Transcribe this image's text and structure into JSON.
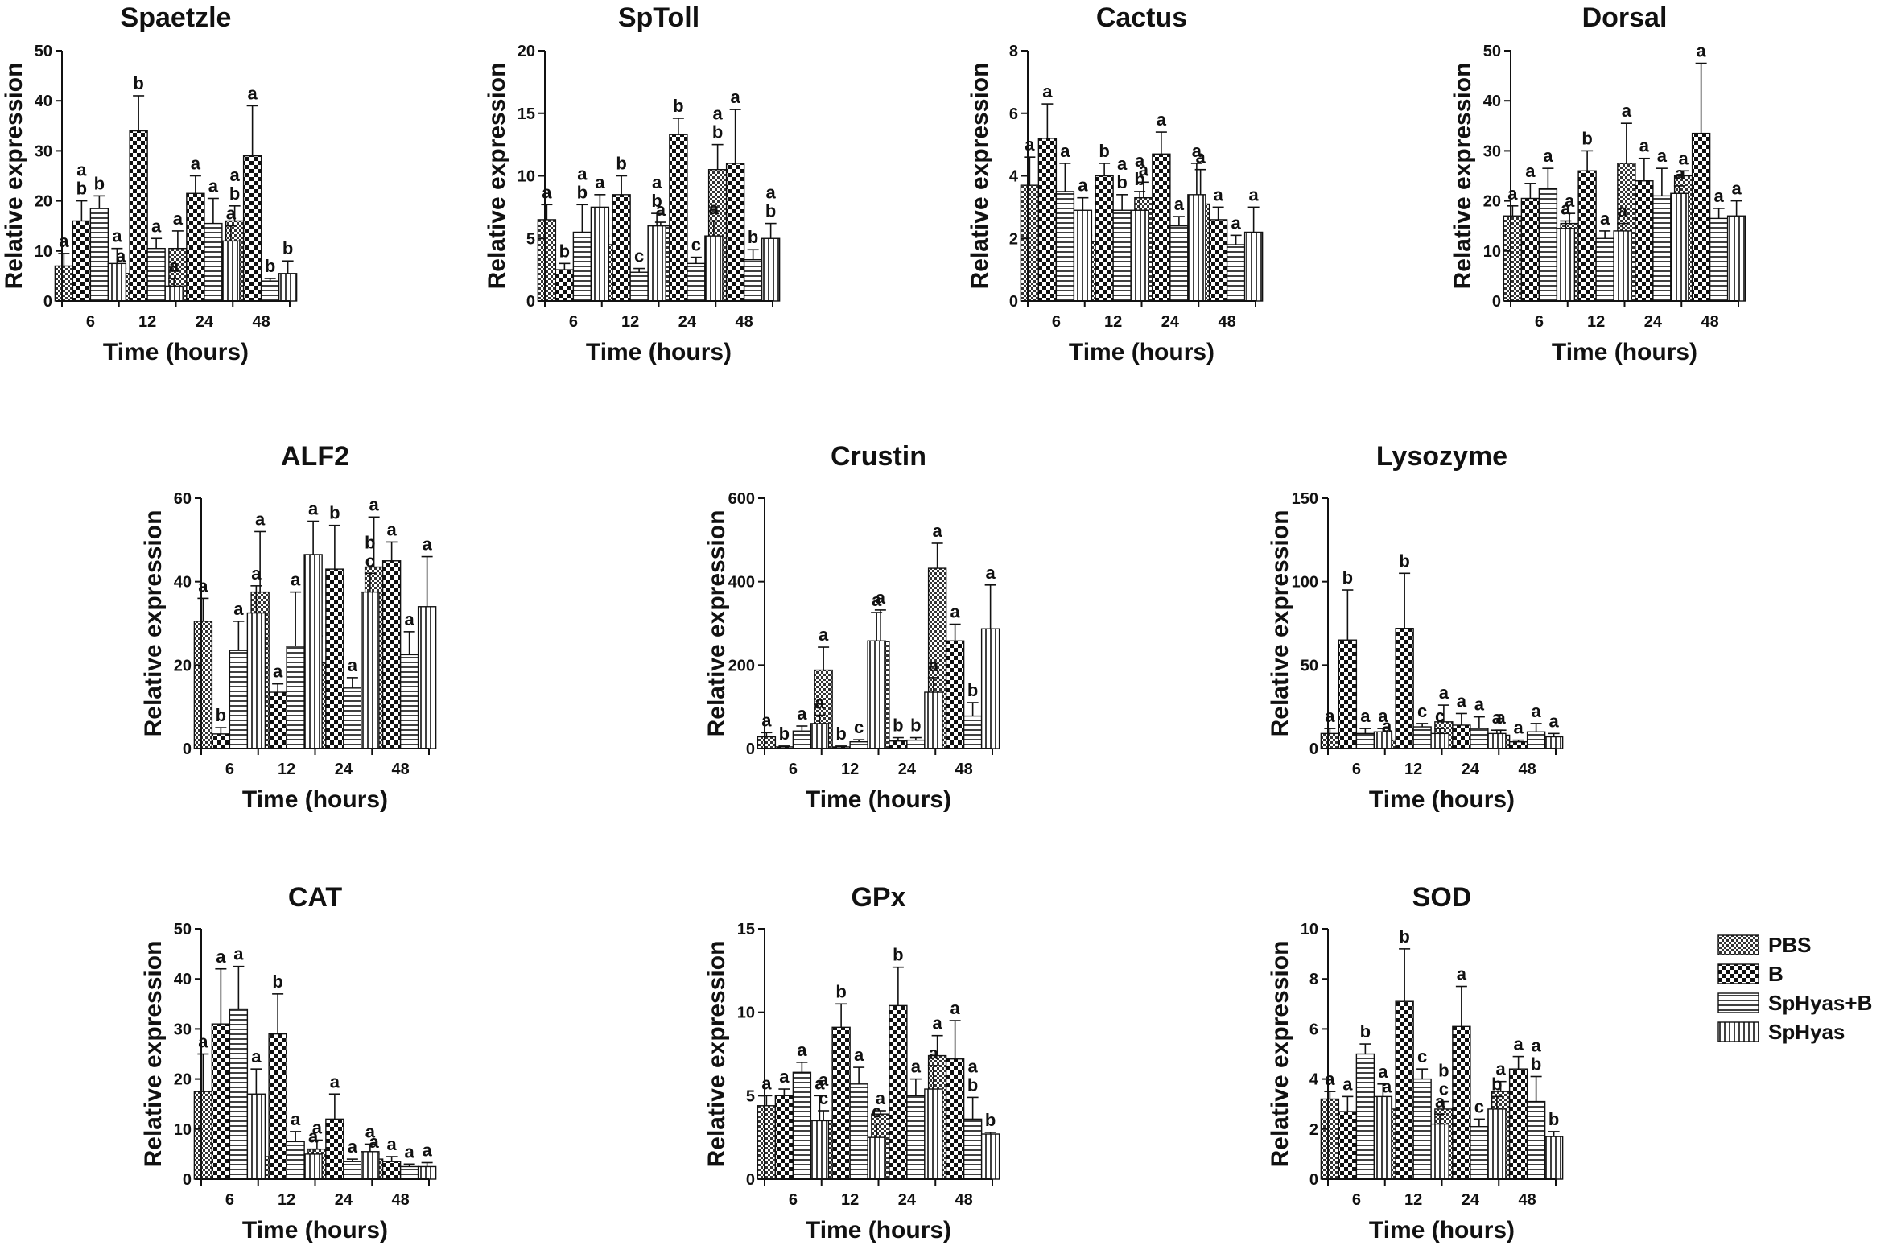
{
  "figure": {
    "legend": [
      {
        "name": "PBS",
        "pattern": "pat-pbs"
      },
      {
        "name": "B",
        "pattern": "pat-b"
      },
      {
        "name": "SpHyas+B",
        "pattern": "pat-hyasb"
      },
      {
        "name": "SpHyas",
        "pattern": "pat-hyas"
      }
    ]
  },
  "chart_data": [
    {
      "type": "bar",
      "title": "Spaetzle",
      "xlabel": "Time (hours)",
      "ylabel": "Relative expression",
      "categories": [
        "6",
        "12",
        "24",
        "48"
      ],
      "ylim": [
        0,
        50
      ],
      "yticks": [
        0,
        10,
        20,
        30,
        40,
        50
      ],
      "series": [
        {
          "name": "PBS",
          "values": [
            7,
            5.5,
            10.5,
            16
          ],
          "errors": [
            2.5,
            1,
            3.5,
            3
          ],
          "letters": [
            "a",
            "a",
            "a",
            "a\nb"
          ]
        },
        {
          "name": "B",
          "values": [
            16,
            34,
            21.5,
            29
          ],
          "errors": [
            4,
            7,
            3.5,
            10
          ],
          "letters": [
            "a\nb",
            "b",
            "a",
            "a"
          ]
        },
        {
          "name": "SpHyas+B",
          "values": [
            18.5,
            10.5,
            15.5,
            4
          ],
          "errors": [
            2.5,
            2,
            5,
            0.5
          ],
          "letters": [
            "b",
            "a",
            "a",
            "b"
          ]
        },
        {
          "name": "SpHyas",
          "values": [
            7.5,
            3,
            12,
            5.5
          ],
          "errors": [
            3,
            1.5,
            3,
            2.5
          ],
          "letters": [
            "a",
            "a",
            "a",
            "b"
          ]
        }
      ]
    },
    {
      "type": "bar",
      "title": "SpToll",
      "xlabel": "Time (hours)",
      "ylabel": "Relative expression",
      "categories": [
        "6",
        "12",
        "24",
        "48"
      ],
      "ylim": [
        0,
        20
      ],
      "yticks": [
        0,
        5,
        10,
        15,
        20
      ],
      "series": [
        {
          "name": "PBS",
          "values": [
            6.5,
            4.5,
            6,
            10.5
          ],
          "errors": [
            1.2,
            0.7,
            0.3,
            2
          ],
          "letters": [
            "a",
            "a",
            "a",
            "a\nb"
          ]
        },
        {
          "name": "B",
          "values": [
            2.5,
            8.5,
            13.3,
            11
          ],
          "errors": [
            0.5,
            1.5,
            1.3,
            4.3
          ],
          "letters": [
            "b",
            "b",
            "b",
            "a"
          ]
        },
        {
          "name": "SpHyas+B",
          "values": [
            5.5,
            2.3,
            3,
            3.3
          ],
          "errors": [
            2.2,
            0.3,
            0.5,
            0.8
          ],
          "letters": [
            "a\nb",
            "c",
            "c",
            "b"
          ]
        },
        {
          "name": "SpHyas",
          "values": [
            7.5,
            6,
            5.2,
            5
          ],
          "errors": [
            1,
            1,
            1.2,
            1.2
          ],
          "letters": [
            "a",
            "a\nb",
            "a",
            "a\nb"
          ]
        }
      ]
    },
    {
      "type": "bar",
      "title": "Cactus",
      "xlabel": "Time (hours)",
      "ylabel": "Relative expression",
      "categories": [
        "6",
        "12",
        "24",
        "48"
      ],
      "ylim": [
        0,
        8
      ],
      "yticks": [
        0,
        2,
        4,
        6,
        8
      ],
      "series": [
        {
          "name": "PBS",
          "values": [
            3.7,
            1.9,
            3.3,
            3.1
          ],
          "errors": [
            0.9,
            0.2,
            0.5,
            1.1
          ],
          "letters": [
            "a",
            "a",
            "a",
            "a"
          ]
        },
        {
          "name": "B",
          "values": [
            5.2,
            4,
            4.7,
            2.6
          ],
          "errors": [
            1.1,
            0.4,
            0.7,
            0.4
          ],
          "letters": [
            "a",
            "b",
            "a",
            "a"
          ]
        },
        {
          "name": "SpHyas+B",
          "values": [
            3.5,
            2.9,
            2.4,
            1.8
          ],
          "errors": [
            0.9,
            0.5,
            0.3,
            0.3
          ],
          "letters": [
            "a",
            "a\nb",
            "a",
            "a"
          ]
        },
        {
          "name": "SpHyas",
          "values": [
            2.9,
            2.9,
            3.4,
            2.2
          ],
          "errors": [
            0.4,
            0.6,
            1,
            0.8
          ],
          "letters": [
            "a",
            "a\nb",
            "a",
            "a"
          ]
        }
      ]
    },
    {
      "type": "bar",
      "title": "Dorsal",
      "xlabel": "Time (hours)",
      "ylabel": "Relative expression",
      "categories": [
        "6",
        "12",
        "24",
        "48"
      ],
      "ylim": [
        0,
        50
      ],
      "yticks": [
        0,
        10,
        20,
        30,
        40,
        50
      ],
      "series": [
        {
          "name": "PBS",
          "values": [
            17,
            15.5,
            27.5,
            25
          ],
          "errors": [
            2,
            2,
            8,
            1
          ],
          "letters": [
            "a",
            "a",
            "a",
            "a"
          ]
        },
        {
          "name": "B",
          "values": [
            20.5,
            26,
            24,
            33.5
          ],
          "errors": [
            3,
            4,
            4.5,
            14
          ],
          "letters": [
            "a",
            "b",
            "a",
            "a"
          ]
        },
        {
          "name": "SpHyas+B",
          "values": [
            22.5,
            12.5,
            21,
            16.5
          ],
          "errors": [
            4,
            1.5,
            5.5,
            2
          ],
          "letters": [
            "a",
            "a",
            "a",
            "a"
          ]
        },
        {
          "name": "SpHyas",
          "values": [
            14.5,
            14,
            21.5,
            17
          ],
          "errors": [
            1.5,
            1.5,
            1.5,
            3
          ],
          "letters": [
            "a",
            "a",
            "a",
            "a"
          ]
        }
      ]
    },
    {
      "type": "bar",
      "title": "ALF2",
      "xlabel": "Time (hours)",
      "ylabel": "Relative expression",
      "categories": [
        "6",
        "12",
        "24",
        "48"
      ],
      "ylim": [
        0,
        60
      ],
      "yticks": [
        0,
        20,
        40,
        60
      ],
      "series": [
        {
          "name": "PBS",
          "values": [
            30.5,
            37.5,
            20.5,
            43.5
          ],
          "errors": [
            5.5,
            14.5,
            6.5,
            12
          ],
          "letters": [
            "a",
            "a",
            "a\nc",
            "a"
          ]
        },
        {
          "name": "B",
          "values": [
            3.5,
            13.5,
            43,
            45
          ],
          "errors": [
            1.5,
            2,
            10.5,
            4.5
          ],
          "letters": [
            "b",
            "a",
            "b",
            "a"
          ]
        },
        {
          "name": "SpHyas+B",
          "values": [
            23.5,
            24.5,
            14.5,
            22.5
          ],
          "errors": [
            7,
            13,
            2.5,
            5.5
          ],
          "letters": [
            "a",
            "a",
            "a",
            "a"
          ]
        },
        {
          "name": "SpHyas",
          "values": [
            32.5,
            46.5,
            37.5,
            34
          ],
          "errors": [
            6.5,
            8,
            4.5,
            12
          ],
          "letters": [
            "a",
            "a",
            "b\nc",
            "a"
          ]
        }
      ]
    },
    {
      "type": "bar",
      "title": "Crustin",
      "xlabel": "Time (hours)",
      "ylabel": "Relative expression",
      "categories": [
        "6",
        "12",
        "24",
        "48"
      ],
      "ylim": [
        0,
        600
      ],
      "yticks": [
        0,
        200,
        400,
        600
      ],
      "series": [
        {
          "name": "PBS",
          "values": [
            28,
            188,
            257,
            432
          ],
          "errors": [
            10,
            55,
            75,
            60
          ],
          "letters": [
            "a",
            "a",
            "a",
            "a"
          ]
        },
        {
          "name": "B",
          "values": [
            4,
            4,
            18,
            258
          ],
          "errors": [
            2,
            2,
            8,
            40
          ],
          "letters": [
            "b",
            "b",
            "b",
            "a"
          ]
        },
        {
          "name": "SpHyas+B",
          "values": [
            42,
            16,
            20,
            78
          ],
          "errors": [
            12,
            5,
            6,
            32
          ],
          "letters": [
            "a",
            "c",
            "b",
            "b"
          ]
        },
        {
          "name": "SpHyas",
          "values": [
            60,
            258,
            135,
            287
          ],
          "errors": [
            20,
            68,
            35,
            105
          ],
          "letters": [
            "a",
            "a",
            "a",
            "a"
          ]
        }
      ]
    },
    {
      "type": "bar",
      "title": "Lysozyme",
      "xlabel": "Time (hours)",
      "ylabel": "Relative expression",
      "categories": [
        "6",
        "12",
        "24",
        "48"
      ],
      "ylim": [
        0,
        150
      ],
      "yticks": [
        0,
        50,
        100,
        150
      ],
      "series": [
        {
          "name": "PBS",
          "values": [
            9,
            5,
            16,
            8
          ],
          "errors": [
            3,
            1,
            10,
            3
          ],
          "letters": [
            "a",
            "a",
            "a",
            "a"
          ]
        },
        {
          "name": "B",
          "values": [
            65,
            72,
            14,
            4
          ],
          "errors": [
            30,
            33,
            7,
            1
          ],
          "letters": [
            "b",
            "b",
            "a",
            "a"
          ]
        },
        {
          "name": "SpHyas+B",
          "values": [
            9,
            13,
            12,
            10
          ],
          "errors": [
            3,
            2,
            7,
            5
          ],
          "letters": [
            "a",
            "c",
            "a",
            "a"
          ]
        },
        {
          "name": "SpHyas",
          "values": [
            10,
            9,
            9,
            7
          ],
          "errors": [
            2,
            3,
            2,
            2
          ],
          "letters": [
            "a",
            "c",
            "a",
            "a"
          ]
        }
      ]
    },
    {
      "type": "bar",
      "title": "CAT",
      "xlabel": "Time (hours)",
      "ylabel": "Relative expression",
      "categories": [
        "6",
        "12",
        "24",
        "48"
      ],
      "ylim": [
        0,
        50
      ],
      "yticks": [
        0,
        10,
        20,
        30,
        40,
        50
      ],
      "series": [
        {
          "name": "PBS",
          "values": [
            17.5,
            4.5,
            6,
            4
          ],
          "errors": [
            7.5,
            1,
            1.8,
            1
          ],
          "letters": [
            "a",
            "a",
            "a",
            "a"
          ]
        },
        {
          "name": "B",
          "values": [
            31,
            29,
            12,
            3.5
          ],
          "errors": [
            11,
            8,
            5,
            1
          ],
          "letters": [
            "a",
            "b",
            "a",
            "a"
          ]
        },
        {
          "name": "SpHyas+B",
          "values": [
            34,
            7.5,
            3.5,
            2.5
          ],
          "errors": [
            8.5,
            2,
            0.5,
            0.5
          ],
          "letters": [
            "a",
            "a",
            "a",
            "a"
          ]
        },
        {
          "name": "SpHyas",
          "values": [
            17,
            5,
            5.5,
            2.5
          ],
          "errors": [
            5,
            1,
            1.5,
            0.8
          ],
          "letters": [
            "a",
            "a",
            "a",
            "a"
          ]
        }
      ]
    },
    {
      "type": "bar",
      "title": "GPx",
      "xlabel": "Time (hours)",
      "ylabel": "Relative expression",
      "categories": [
        "6",
        "12",
        "24",
        "48"
      ],
      "ylim": [
        0,
        15
      ],
      "yticks": [
        0,
        5,
        10,
        15
      ],
      "series": [
        {
          "name": "PBS",
          "values": [
            4.4,
            3.5,
            3.9,
            7.4
          ],
          "errors": [
            0.6,
            0.6,
            0.2,
            1.2
          ],
          "letters": [
            "a",
            "a\nc",
            "a",
            "a"
          ]
        },
        {
          "name": "B",
          "values": [
            5,
            9.1,
            10.4,
            7.2
          ],
          "errors": [
            0.4,
            1.4,
            2.3,
            2.3
          ],
          "letters": [
            "a",
            "b",
            "b",
            "a"
          ]
        },
        {
          "name": "SpHyas+B",
          "values": [
            6.4,
            5.7,
            5,
            3.6
          ],
          "errors": [
            0.6,
            1,
            1,
            1.3
          ],
          "letters": [
            "a",
            "a",
            "a",
            "a\nb"
          ]
        },
        {
          "name": "SpHyas",
          "values": [
            3.5,
            2.5,
            5.4,
            2.7
          ],
          "errors": [
            1.5,
            0.8,
            1.4,
            0.1
          ],
          "letters": [
            "a",
            "c",
            "a",
            "b"
          ]
        }
      ]
    },
    {
      "type": "bar",
      "title": "SOD",
      "xlabel": "Time (hours)",
      "ylabel": "Relative expression",
      "categories": [
        "6",
        "12",
        "24",
        "48"
      ],
      "ylim": [
        0,
        10
      ],
      "yticks": [
        0,
        2,
        4,
        6,
        8,
        10
      ],
      "series": [
        {
          "name": "PBS",
          "values": [
            3.2,
            2.8,
            2.8,
            3.5
          ],
          "errors": [
            0.3,
            0.4,
            0.3,
            0.4
          ],
          "letters": [
            "a",
            "a",
            "b\nc",
            "a"
          ]
        },
        {
          "name": "B",
          "values": [
            2.7,
            7.1,
            6.1,
            4.4
          ],
          "errors": [
            0.6,
            2.1,
            1.6,
            0.5
          ],
          "letters": [
            "a",
            "b",
            "a",
            "a"
          ]
        },
        {
          "name": "SpHyas+B",
          "values": [
            5,
            4,
            2.1,
            3.1
          ],
          "errors": [
            0.4,
            0.4,
            0.3,
            1
          ],
          "letters": [
            "b",
            "c",
            "c",
            "a\nb"
          ]
        },
        {
          "name": "SpHyas",
          "values": [
            3.3,
            2.2,
            2.8,
            1.7
          ],
          "errors": [
            0.5,
            0.4,
            0.5,
            0.2
          ],
          "letters": [
            "a",
            "a",
            "b",
            "b"
          ]
        }
      ]
    }
  ]
}
